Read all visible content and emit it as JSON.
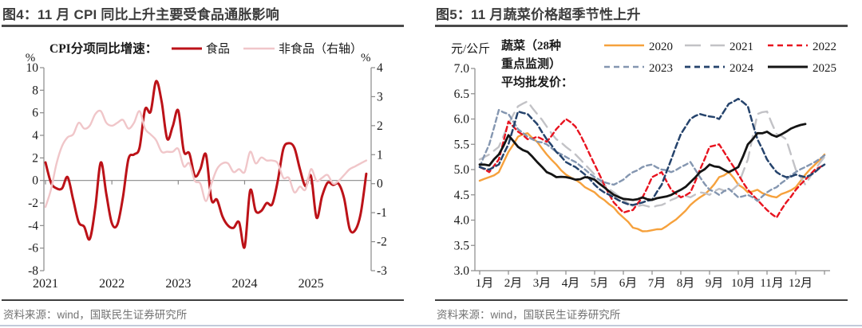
{
  "sources": {
    "fig4": "资料来源：wind，国联民生证券研究所",
    "fig5": "资料来源：wind，国联民生证券研究所"
  },
  "theme": {
    "axis_color": "#8a8a8a",
    "tick_text_color": "#1a1a1a",
    "title_color": "#3d3d3d",
    "source_color": "#737373"
  },
  "chart_data": [
    {
      "type": "line",
      "title": "图4：11 月 CPI 同比上升主要受食品通胀影响",
      "legend_title": "CPI分项同比增速：",
      "y_left": {
        "unit": "%",
        "min": -8,
        "max": 10,
        "ticks": [
          10,
          8,
          6,
          4,
          2,
          0,
          -2,
          -4,
          -6,
          -8
        ],
        "tick_labels": [
          "10",
          "8",
          "6",
          "4",
          "2",
          "0",
          "-2",
          "-4",
          "-6",
          "-8"
        ]
      },
      "y_right": {
        "unit": "%",
        "min": -3,
        "max": 4,
        "ticks": [
          4,
          3,
          2,
          1,
          0,
          -1,
          -2,
          -3
        ],
        "tick_labels": [
          "4",
          "3",
          "2",
          "1",
          "0",
          "-1",
          "-2",
          "-3"
        ]
      },
      "x": {
        "labels": [
          "2021",
          "2022",
          "2023",
          "2024",
          "2025"
        ]
      },
      "series": [
        {
          "id": "food",
          "name": "食品",
          "axis": "left",
          "color": "#bc1218",
          "width": 3,
          "values": [
            1.6,
            -0.2,
            -0.7,
            -0.7,
            0.3,
            -1.7,
            -3.7,
            -4.1,
            -5.2,
            -2.4,
            1.6,
            -1.2,
            -3.8,
            -3.9,
            -1.5,
            1.9,
            2.3,
            2.9,
            6.3,
            6.1,
            8.8,
            7.0,
            3.7,
            4.8,
            6.2,
            2.6,
            2.4,
            0.4,
            1.0,
            2.3,
            -1.7,
            -1.7,
            -3.2,
            -4.0,
            -4.2,
            -3.7,
            -5.9,
            -0.9,
            -2.7,
            -2.7,
            -2.0,
            -2.1,
            0.0,
            2.8,
            3.3,
            2.9,
            1.0,
            -0.5,
            0.4,
            -3.3,
            -1.4,
            -0.2,
            -0.4,
            -0.3,
            -1.6,
            -4.3,
            -4.4,
            -2.9,
            0.6
          ]
        },
        {
          "id": "non-food",
          "name": "非食品（右轴）",
          "axis": "right",
          "color": "#f0c6c9",
          "width": 2.4,
          "values": [
            -0.8,
            -0.2,
            0.7,
            1.3,
            1.6,
            1.7,
            2.1,
            1.9,
            2.0,
            2.4,
            2.5,
            2.1,
            2.0,
            2.1,
            2.2,
            1.9,
            2.1,
            2.5,
            1.9,
            1.7,
            1.5,
            1.1,
            1.1,
            1.1,
            1.2,
            0.6,
            0.7,
            0.1,
            0.0,
            -0.6,
            0.0,
            0.5,
            0.7,
            0.7,
            0.4,
            0.5,
            0.4,
            1.1,
            0.7,
            0.9,
            0.8,
            0.8,
            0.7,
            0.2,
            0.2,
            -0.3,
            -0.1,
            -0.2,
            0.5,
            0.1,
            0.2,
            0.3,
            0.0,
            0.1,
            0.3,
            0.5,
            0.6,
            0.7,
            0.8
          ]
        }
      ]
    },
    {
      "type": "line",
      "title": "图5：11 月蔬菜价格超季节性上升",
      "y_unit": "元/公斤",
      "legend_title_lines": [
        "蔬菜（28种",
        "重点监测）",
        "平均批发价："
      ],
      "y": {
        "min": 3.0,
        "max": 7.0,
        "ticks": [
          7.0,
          6.5,
          6.0,
          5.5,
          5.0,
          4.5,
          4.0,
          3.5,
          3.0
        ],
        "tick_labels": [
          "7.0",
          "6.5",
          "6.0",
          "5.5",
          "5.0",
          "4.5",
          "4.0",
          "3.5",
          "3.0"
        ]
      },
      "x": {
        "labels": [
          "1月",
          "2月",
          "3月",
          "4月",
          "5月",
          "6月",
          "7月",
          "8月",
          "9月",
          "10月",
          "11月",
          "12月"
        ]
      },
      "series": [
        {
          "id": "y2020",
          "name": "2020",
          "color": "#f6a13c",
          "dash": "",
          "width": 2.4,
          "values": [
            4.78,
            4.85,
            4.95,
            5.35,
            5.65,
            5.72,
            5.55,
            5.3,
            5.1,
            4.9,
            4.8,
            4.65,
            4.55,
            4.4,
            4.25,
            4.05,
            3.85,
            3.78,
            3.8,
            3.82,
            3.95,
            4.1,
            4.3,
            4.45,
            4.6,
            4.85,
            4.95,
            4.7,
            4.55,
            4.6,
            4.5,
            4.45,
            4.55,
            4.65,
            4.9,
            5.1,
            5.3
          ]
        },
        {
          "id": "y2021",
          "name": "2021",
          "color": "#c2c2c6",
          "dash": "13 8",
          "width": 2.4,
          "values": [
            5.2,
            5.3,
            5.45,
            5.9,
            6.25,
            6.35,
            6.1,
            5.85,
            5.6,
            5.45,
            5.3,
            5.1,
            4.9,
            4.7,
            4.55,
            4.4,
            4.28,
            4.3,
            4.25,
            4.3,
            4.4,
            4.5,
            4.45,
            4.55,
            4.5,
            4.62,
            4.55,
            4.7,
            5.2,
            6.1,
            6.15,
            5.7,
            5.6,
            5.0,
            4.7,
            5.0,
            5.25
          ]
        },
        {
          "id": "y2022",
          "name": "2022",
          "color": "#e8131f",
          "dash": "6 4",
          "width": 2.4,
          "values": [
            5.05,
            4.95,
            5.2,
            5.95,
            5.75,
            5.6,
            5.65,
            5.55,
            5.8,
            6.0,
            5.85,
            5.5,
            5.1,
            4.7,
            4.35,
            4.15,
            4.2,
            4.45,
            4.85,
            4.95,
            4.6,
            4.45,
            4.55,
            5.0,
            5.45,
            5.5,
            5.2,
            4.9,
            4.6,
            4.4,
            4.2,
            4.05,
            4.35,
            4.6,
            4.8,
            5.0,
            5.1
          ]
        },
        {
          "id": "y2023",
          "name": "2023",
          "color": "#8496b0",
          "dash": "6 4",
          "width": 2.4,
          "values": [
            5.05,
            5.5,
            6.18,
            6.1,
            5.8,
            5.65,
            5.55,
            5.5,
            5.35,
            5.25,
            5.15,
            5.0,
            4.85,
            4.75,
            4.7,
            4.8,
            4.95,
            5.05,
            5.1,
            5.0,
            4.95,
            5.05,
            5.15,
            4.85,
            4.6,
            4.5,
            4.62,
            4.45,
            4.5,
            4.38,
            4.55,
            4.65,
            4.8,
            4.95,
            5.05,
            5.15,
            5.28
          ]
        },
        {
          "id": "y2024",
          "name": "2024",
          "color": "#25436c",
          "dash": "7 4",
          "width": 2.5,
          "values": [
            5.05,
            5.0,
            5.1,
            5.5,
            6.15,
            6.1,
            5.9,
            5.6,
            5.35,
            5.15,
            5.05,
            4.9,
            4.7,
            4.55,
            4.45,
            4.35,
            4.3,
            4.35,
            4.4,
            4.7,
            5.2,
            5.7,
            6.0,
            6.1,
            6.05,
            6.0,
            6.3,
            6.4,
            6.25,
            5.6,
            5.2,
            4.95,
            4.85,
            4.9,
            4.85,
            4.95,
            5.1
          ]
        },
        {
          "id": "y2025",
          "name": "2025",
          "color": "#141414",
          "dash": "",
          "width": 2.8,
          "values": [
            5.1,
            5.08,
            5.3,
            5.68,
            5.45,
            5.35,
            5.15,
            4.95,
            4.85,
            4.85,
            4.8,
            4.85,
            4.8,
            4.65,
            4.5,
            4.42,
            4.4,
            4.45,
            4.4,
            4.45,
            4.5,
            4.6,
            4.75,
            4.95,
            5.1,
            5.05,
            4.95,
            5.05,
            5.5,
            5.72,
            5.75,
            5.65,
            5.75,
            5.85,
            5.9
          ]
        }
      ],
      "legend_rows": [
        [
          "y2020",
          "y2021",
          "y2022"
        ],
        [
          "y2023",
          "y2024",
          "y2025"
        ]
      ]
    }
  ]
}
